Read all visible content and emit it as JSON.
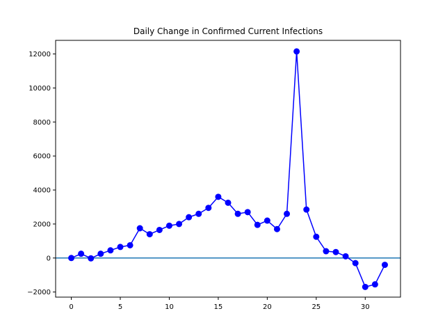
{
  "chart_data": {
    "type": "line",
    "title": "Daily Change in Confirmed Current Infections",
    "xlabel": "",
    "ylabel": "",
    "xlim": [
      -1.6,
      33.6
    ],
    "ylim": [
      -2300,
      12800
    ],
    "xticks": [
      0,
      5,
      10,
      15,
      20,
      25,
      30
    ],
    "yticks": [
      -2000,
      0,
      2000,
      4000,
      6000,
      8000,
      10000,
      12000
    ],
    "grid": false,
    "series": [
      {
        "color": "#0000ff",
        "marker": "circle",
        "x": [
          0,
          1,
          2,
          3,
          4,
          5,
          6,
          7,
          8,
          9,
          10,
          11,
          12,
          13,
          14,
          15,
          16,
          17,
          18,
          19,
          20,
          21,
          22,
          23,
          24,
          25,
          26,
          27,
          28,
          29,
          30,
          31,
          32
        ],
        "y": [
          0,
          250,
          -20,
          250,
          450,
          650,
          750,
          1750,
          1400,
          1650,
          1900,
          2000,
          2400,
          2600,
          2950,
          3600,
          3250,
          2600,
          2700,
          1950,
          2200,
          1700,
          2600,
          12150,
          2850,
          1250,
          400,
          350,
          100,
          -300,
          -1700,
          -1550,
          -400
        ]
      }
    ],
    "reference_lines": [
      {
        "orientation": "horizontal",
        "value": 0,
        "color": "#1f77b4"
      }
    ]
  }
}
